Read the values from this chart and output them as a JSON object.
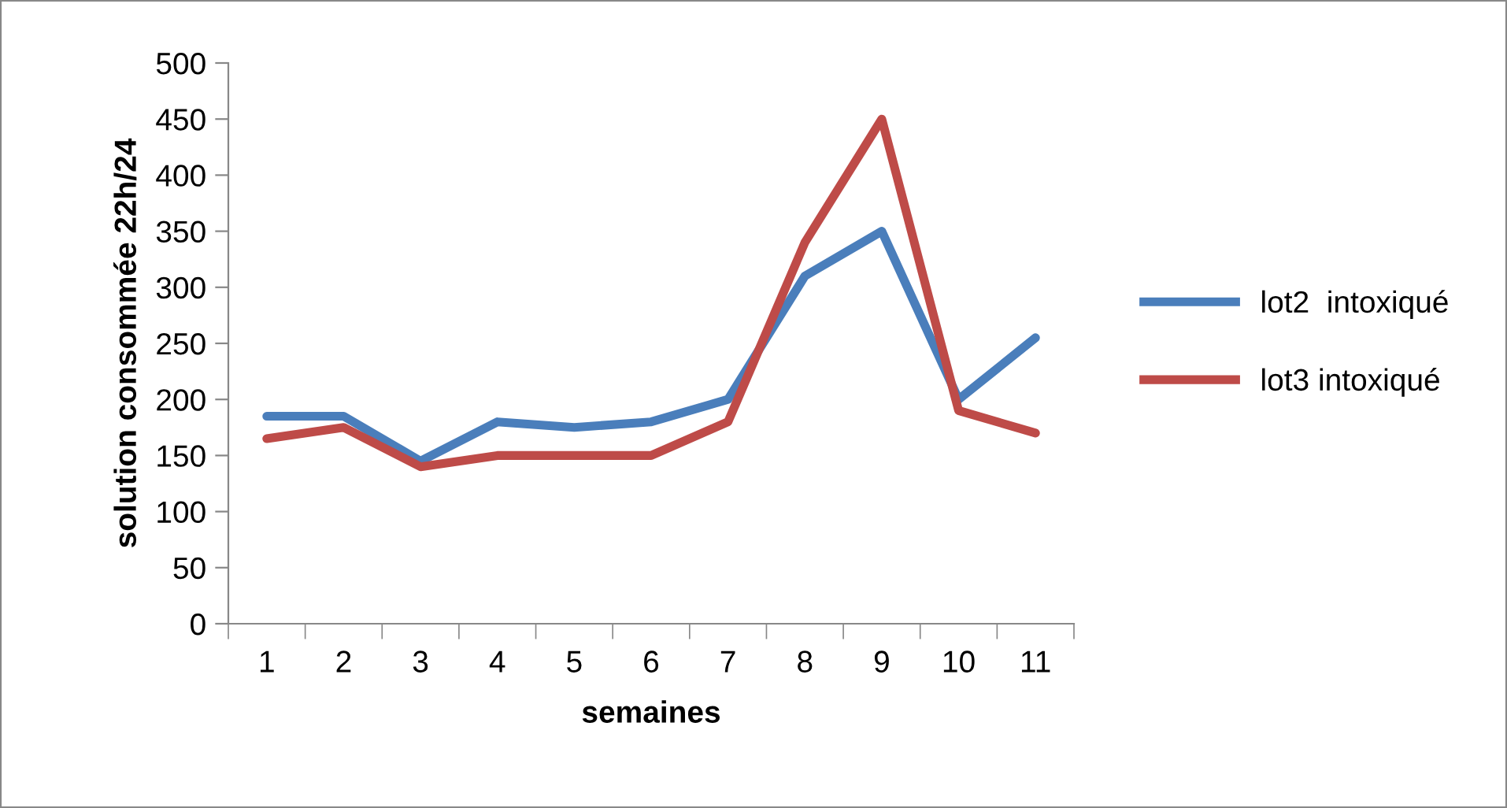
{
  "chart_data": {
    "type": "line",
    "xlabel": "semaines",
    "ylabel": "solution consommée 22h/24",
    "categories": [
      "1",
      "2",
      "3",
      "4",
      "5",
      "6",
      "7",
      "8",
      "9",
      "10",
      "11"
    ],
    "series": [
      {
        "name": "lot2  intoxiqué",
        "color": "#4a7ebb",
        "values": [
          185,
          185,
          145,
          180,
          175,
          180,
          200,
          310,
          350,
          200,
          255
        ]
      },
      {
        "name": "lot3 intoxiqué",
        "color": "#be4b48",
        "values": [
          165,
          175,
          140,
          150,
          150,
          150,
          180,
          340,
          450,
          190,
          170
        ]
      }
    ],
    "ylim": [
      0,
      500
    ],
    "yticks": [
      0,
      50,
      100,
      150,
      200,
      250,
      300,
      350,
      400,
      450,
      500
    ],
    "grid": false,
    "legend": "right",
    "marker": "none",
    "line_style": "solid"
  }
}
